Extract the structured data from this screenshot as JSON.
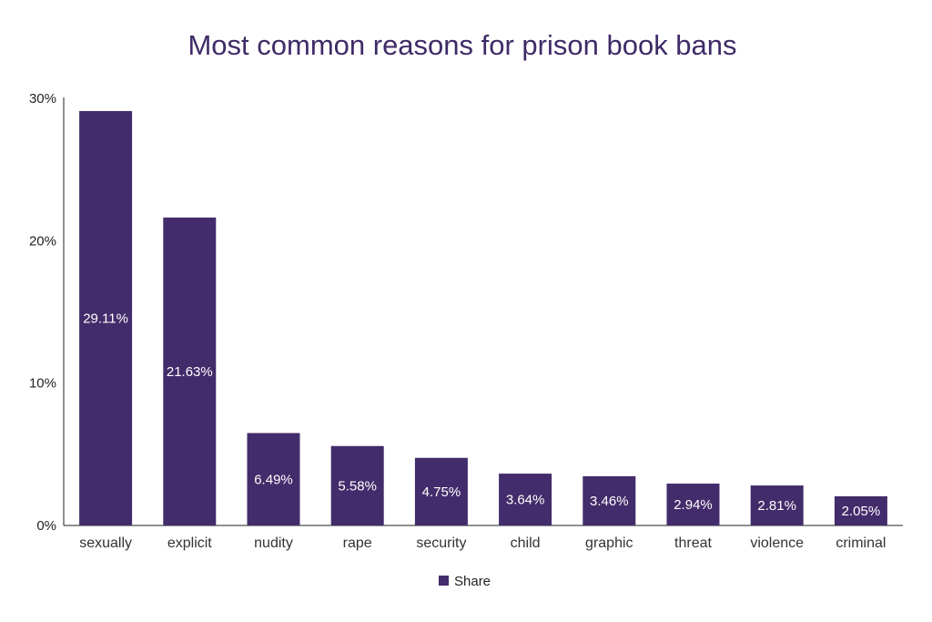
{
  "chart_data": {
    "type": "bar",
    "title": "Most common reasons for prison book bans",
    "categories": [
      "sexually",
      "explicit",
      "nudity",
      "rape",
      "security",
      "child",
      "graphic",
      "threat",
      "violence",
      "criminal"
    ],
    "series": [
      {
        "name": "Share",
        "values": [
          29.11,
          21.63,
          6.49,
          5.58,
          4.75,
          3.64,
          3.46,
          2.94,
          2.81,
          2.05
        ],
        "labels": [
          "29.11%",
          "21.63%",
          "6.49%",
          "5.58%",
          "4.75%",
          "3.64%",
          "3.46%",
          "2.94%",
          "2.81%",
          "2.05%"
        ]
      }
    ],
    "y_ticks": [
      0,
      10,
      20,
      30
    ],
    "y_tick_labels": [
      "0%",
      "10%",
      "20%",
      "30%"
    ],
    "ylim": [
      0,
      30
    ],
    "xlabel": "",
    "ylabel": "",
    "grid": false,
    "legend_position": "bottom",
    "bar_color": "#432c6b"
  }
}
